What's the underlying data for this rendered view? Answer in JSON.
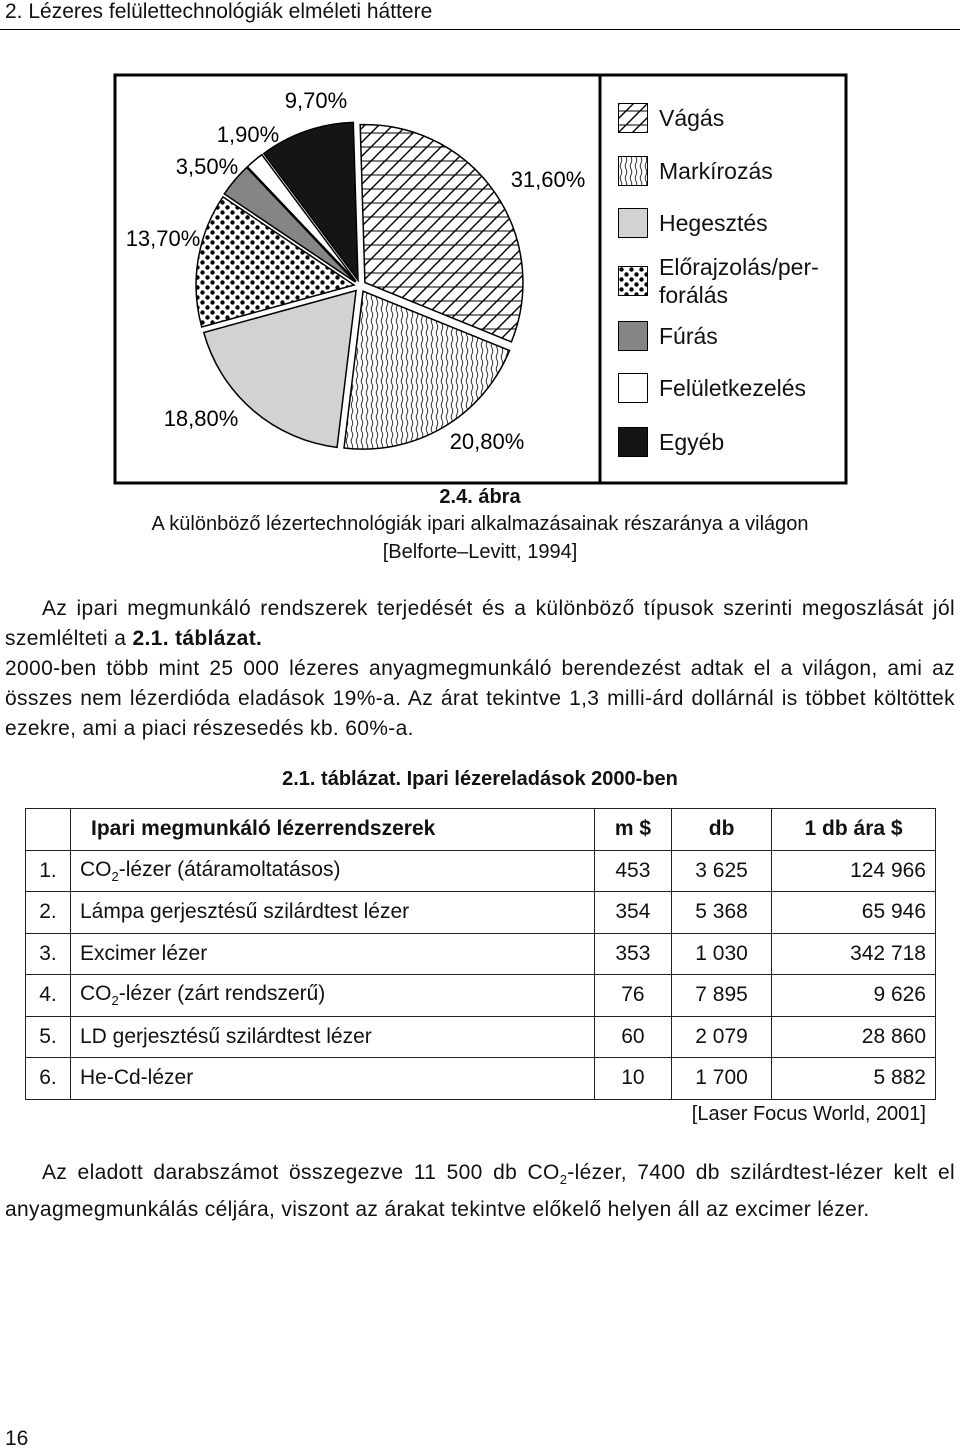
{
  "header": {
    "title": "2. Lézeres felülettechnológiák elméleti háttere"
  },
  "chart_data": {
    "type": "pie",
    "categories": [
      "Vágás",
      "Markírozás",
      "Hegesztés",
      "Előrajzolás/per­forálás",
      "Fúrás",
      "Felületkezelés",
      "Egyéb"
    ],
    "values": [
      31.6,
      20.8,
      18.8,
      13.7,
      3.5,
      1.9,
      9.7
    ],
    "value_labels": [
      "31,60%",
      "20,80%",
      "18,80%",
      "13,70%",
      "3,50%",
      "1,90%",
      "9,70%"
    ],
    "fills": [
      "crosshatch",
      "vertical-lines",
      "#d2d2d2",
      "dots",
      "#858585",
      "#ffffff",
      "#151515"
    ],
    "legend": "right"
  },
  "figure": {
    "number": "2.4. ábra",
    "caption": "A különböző lézertechnológiák ipari alkalmazásainak részaránya a világon",
    "source": "[Belforte–Levitt, 1994]"
  },
  "paragraphs": [
    {
      "text": "Az ipari megmunkáló rendszerek terjedését és a különböző típusok szerinti megoszlását jól szemlélteti a ",
      "ref": "2.1. táblázat."
    },
    {
      "text": "2000-ben több mint 25 000 lézeres anyagmegmunkáló berendezést adtak el a világon, ami az összes nem lézerdióda eladások 19%-a. Az árat tekintve 1,3 milli-árd dollárnál is többet költöttek ezekre, ami a piaci részesedés kb. 60%-a."
    }
  ],
  "table": {
    "label": "2.1. táblázat.",
    "title": "Ipari lézereladások 2000-ben",
    "header": [
      "Ipari megmunkáló lézerrendszerek",
      "m $",
      "db",
      "1 db ára $"
    ],
    "rows": [
      {
        "no": "1.",
        "name": [
          "CO",
          "2",
          "-lézer (átáramoltatásos)"
        ],
        "cells": [
          "453",
          "3 625",
          "124 966"
        ]
      },
      {
        "no": "2.",
        "name": [
          "Lámpa gerjesztésű szilárdtest lézer"
        ],
        "cells": [
          "354",
          "5 368",
          "65 946"
        ]
      },
      {
        "no": "3.",
        "name": [
          "Excimer lézer"
        ],
        "cells": [
          "353",
          "1 030",
          "342 718"
        ]
      },
      {
        "no": "4.",
        "name": [
          "CO",
          "2",
          "-lézer (zárt rendszerű)"
        ],
        "cells": [
          "76",
          "7 895",
          "9 626"
        ]
      },
      {
        "no": "5.",
        "name": [
          "LD gerjesztésű szilárdtest lézer"
        ],
        "cells": [
          "60",
          "2 079",
          "28 860"
        ]
      },
      {
        "no": "6.",
        "name": [
          "He-Cd-lézer"
        ],
        "cells": [
          "10",
          "1 700",
          "5 882"
        ]
      }
    ],
    "source": "[Laser Focus World, 2001]"
  },
  "closing": {
    "runs": [
      "Az eladott darabszámot összegezve 11 500 db CO",
      "2",
      "-lézer, 7400 db szilárdtest-lézer kelt el anyagmegmunkálás céljára, viszont az árakat tekintve előkelő helyen áll az excimer lézer."
    ]
  },
  "footer": {
    "page": "16"
  }
}
